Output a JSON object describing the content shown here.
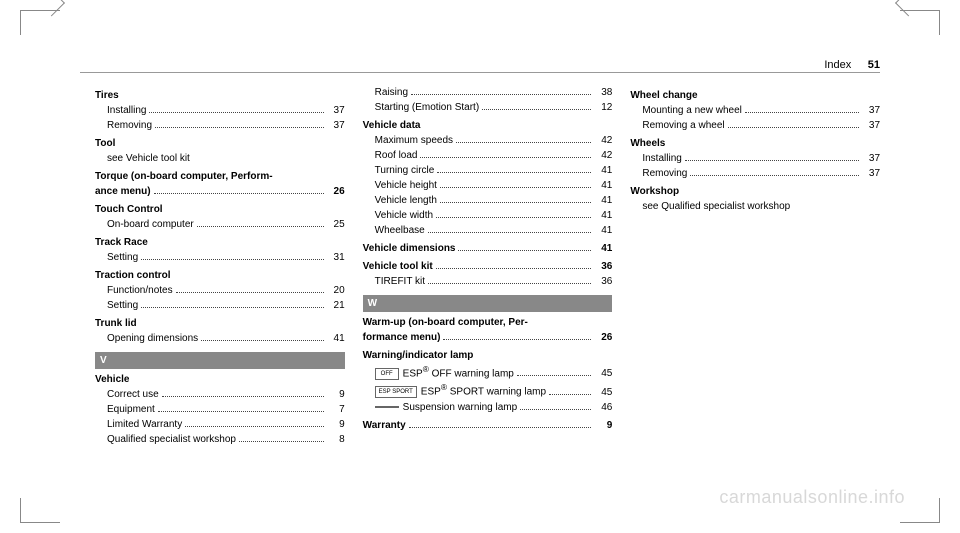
{
  "header": {
    "title": "Index",
    "page": "51"
  },
  "watermark": "carmanualsonline.info",
  "letters": {
    "v": "V",
    "w": "W"
  },
  "col1": [
    {
      "type": "main",
      "label": "Tires"
    },
    {
      "type": "sub",
      "label": "Installing",
      "page": "37"
    },
    {
      "type": "sub",
      "label": "Removing",
      "page": "37"
    },
    {
      "type": "main",
      "label": "Tool"
    },
    {
      "type": "see",
      "label": "see Vehicle tool kit"
    },
    {
      "type": "multiline",
      "line1": "Torque (on-board computer, Perform-",
      "line2": "ance menu)",
      "page": "26"
    },
    {
      "type": "main",
      "label": "Touch Control"
    },
    {
      "type": "sub",
      "label": "On-board computer",
      "page": "25"
    },
    {
      "type": "main",
      "label": "Track Race"
    },
    {
      "type": "sub",
      "label": "Setting",
      "page": "31"
    },
    {
      "type": "main",
      "label": "Traction control"
    },
    {
      "type": "sub",
      "label": "Function/notes",
      "page": "20"
    },
    {
      "type": "sub",
      "label": "Setting",
      "page": "21"
    },
    {
      "type": "main",
      "label": "Trunk lid"
    },
    {
      "type": "sub",
      "label": "Opening dimensions",
      "page": "41"
    },
    {
      "type": "letter",
      "key": "v"
    },
    {
      "type": "main",
      "label": "Vehicle"
    },
    {
      "type": "sub",
      "label": "Correct use",
      "page": "9"
    },
    {
      "type": "sub",
      "label": "Equipment",
      "page": "7"
    },
    {
      "type": "sub",
      "label": "Limited Warranty",
      "page": "9"
    },
    {
      "type": "sub",
      "label": "Qualified specialist workshop",
      "page": "8"
    }
  ],
  "col2": [
    {
      "type": "sub",
      "label": "Raising",
      "page": "38"
    },
    {
      "type": "sub",
      "label": "Starting (Emotion Start)",
      "page": "12"
    },
    {
      "type": "main",
      "label": "Vehicle data"
    },
    {
      "type": "sub",
      "label": "Maximum speeds",
      "page": "42"
    },
    {
      "type": "sub",
      "label": "Roof load",
      "page": "42"
    },
    {
      "type": "sub",
      "label": "Turning circle",
      "page": "41"
    },
    {
      "type": "sub",
      "label": "Vehicle height",
      "page": "41"
    },
    {
      "type": "sub",
      "label": "Vehicle length",
      "page": "41"
    },
    {
      "type": "sub",
      "label": "Vehicle width",
      "page": "41"
    },
    {
      "type": "sub",
      "label": "Wheelbase",
      "page": "41"
    },
    {
      "type": "mainpage",
      "label": "Vehicle dimensions",
      "page": "41"
    },
    {
      "type": "mainpage",
      "label": "Vehicle tool kit",
      "page": "36"
    },
    {
      "type": "sub",
      "label": "TIREFIT kit",
      "page": "36"
    },
    {
      "type": "letter",
      "key": "w"
    },
    {
      "type": "multiline",
      "line1": "Warm-up (on-board computer, Per-",
      "line2": "formance menu)",
      "page": "26"
    },
    {
      "type": "main",
      "label": "Warning/indicator lamp"
    },
    {
      "type": "iconsub",
      "icon": "OFF",
      "label": "ESP® OFF warning lamp",
      "page": "45"
    },
    {
      "type": "iconsub",
      "icon": "ESP SPORT",
      "label": "ESP® SPORT warning lamp",
      "page": "45"
    },
    {
      "type": "iconsub",
      "icon": " ",
      "label": "Suspension warning lamp",
      "page": "46"
    },
    {
      "type": "mainpage",
      "label": "Warranty",
      "page": "9"
    }
  ],
  "col3": [
    {
      "type": "main",
      "label": "Wheel change"
    },
    {
      "type": "sub",
      "label": "Mounting a new wheel",
      "page": "37"
    },
    {
      "type": "sub",
      "label": "Removing a wheel",
      "page": "37"
    },
    {
      "type": "main",
      "label": "Wheels"
    },
    {
      "type": "sub",
      "label": "Installing",
      "page": "37"
    },
    {
      "type": "sub",
      "label": "Removing",
      "page": "37"
    },
    {
      "type": "main",
      "label": "Workshop"
    },
    {
      "type": "see",
      "label": "see Qualified specialist workshop"
    }
  ]
}
